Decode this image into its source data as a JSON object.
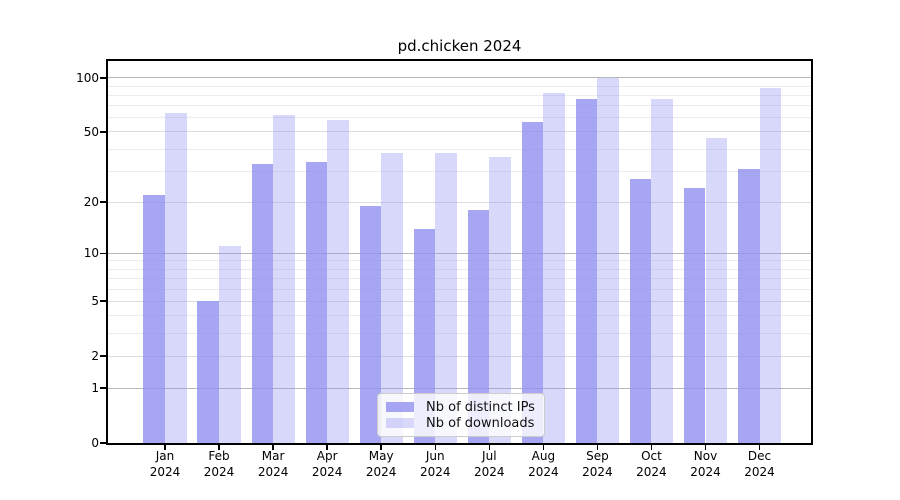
{
  "chart_data": {
    "type": "bar",
    "title": "pd.chicken 2024",
    "categories": [
      "Jan 2024",
      "Feb 2024",
      "Mar 2024",
      "Apr 2024",
      "May 2024",
      "Jun 2024",
      "Jul 2024",
      "Aug 2024",
      "Sep 2024",
      "Oct 2024",
      "Nov 2024",
      "Dec 2024"
    ],
    "series": [
      {
        "name": "Nb of distinct IPs",
        "values": [
          22,
          5,
          33,
          34,
          19,
          14,
          18,
          57,
          76,
          27,
          24,
          31
        ],
        "base_color": "#9090f0",
        "alpha": 0.8
      },
      {
        "name": "Nb of downloads",
        "values": [
          64,
          11,
          62,
          58,
          38,
          38,
          36,
          82,
          100,
          76,
          46,
          88
        ],
        "base_color": "#9090f0",
        "alpha": 0.35
      }
    ],
    "xlabel": "",
    "ylabel": "",
    "yscale": "log1p",
    "ylim": [
      0,
      124
    ],
    "yticks": [
      0,
      1,
      2,
      5,
      10,
      20,
      50,
      100
    ],
    "yticks_decade": [
      1,
      10,
      100
    ],
    "yticks_minor": [
      3,
      4,
      6,
      7,
      8,
      9,
      30,
      40,
      60,
      70,
      80,
      90
    ],
    "grid": true,
    "legend_position": "lower center"
  },
  "colors": {
    "decade_grid": "#b8b8b8",
    "major_grid": "#dddddd",
    "minor_grid": "#ececec",
    "spine": "#000000",
    "text": "#000000"
  }
}
